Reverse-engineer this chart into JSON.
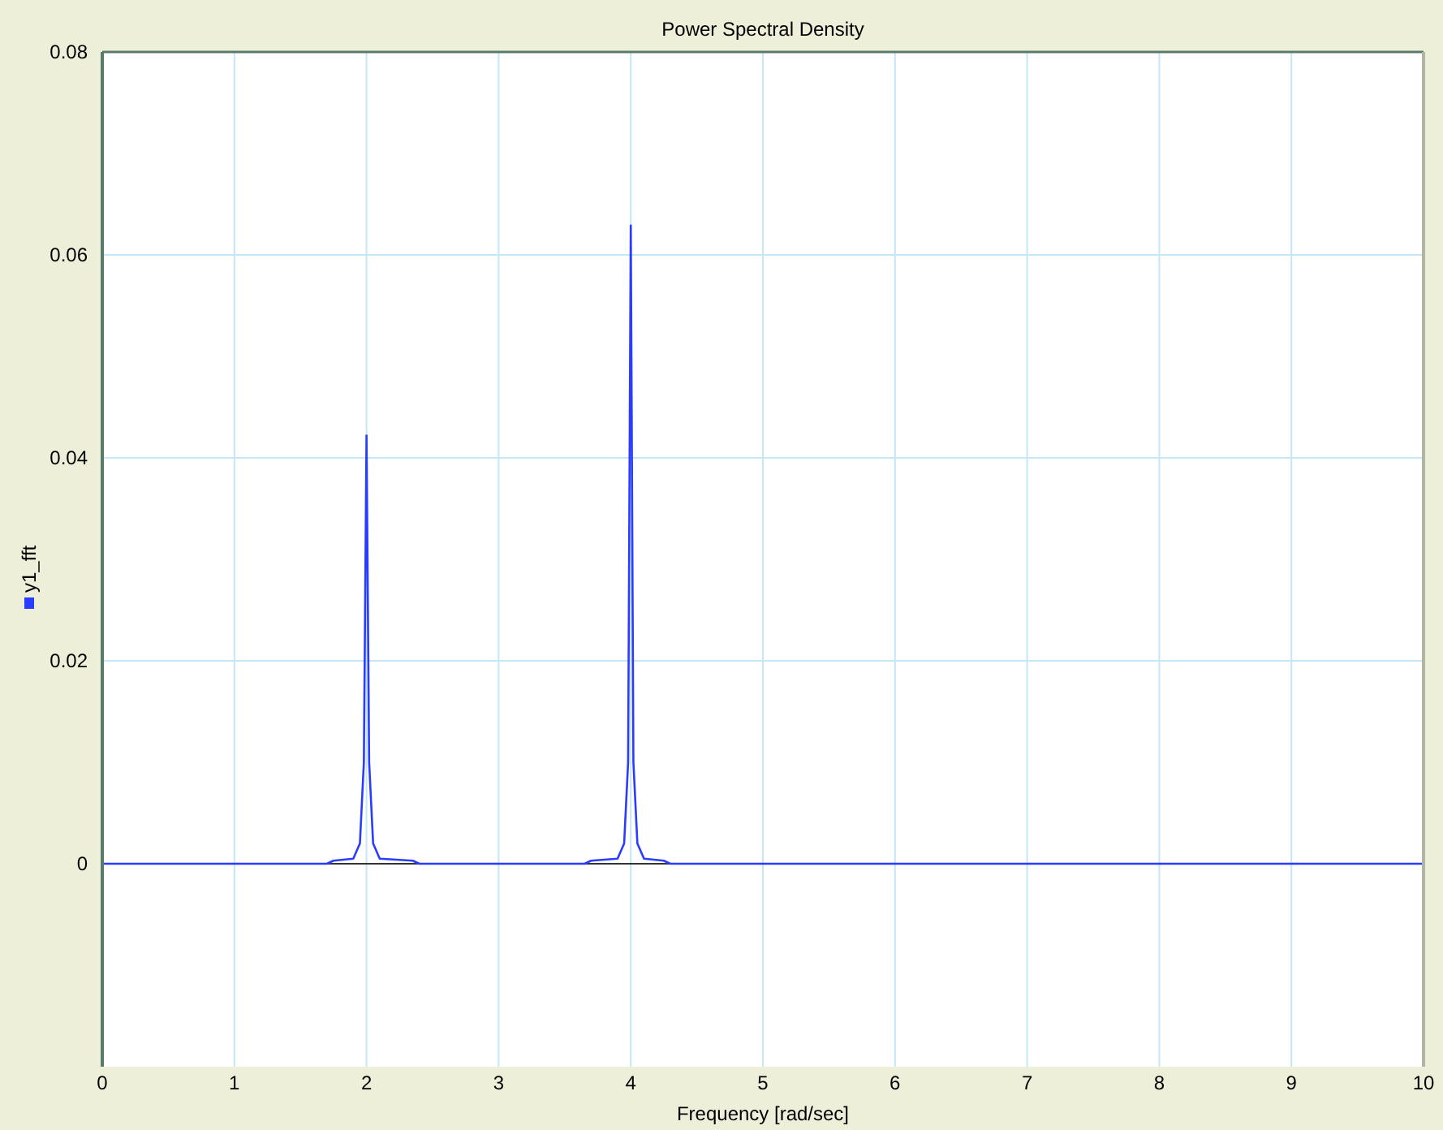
{
  "chart_data": {
    "type": "line",
    "title": "Power Spectral Density",
    "xlabel": "Frequency [rad/sec]",
    "xlim": [
      0,
      10
    ],
    "xticks": [
      0,
      1,
      2,
      3,
      4,
      5,
      6,
      7,
      8,
      9,
      10
    ],
    "ylim": [
      -0.02,
      0.08
    ],
    "yticks": [
      0,
      0.02,
      0.04,
      0.06,
      0.08
    ],
    "grid": true,
    "legend": "left",
    "series": [
      {
        "name": "y1_fft",
        "color": "#2a3cff",
        "x": [
          0,
          1.7,
          1.75,
          1.9,
          1.95,
          1.98,
          2.0,
          2.02,
          2.05,
          2.1,
          2.35,
          2.4,
          3.65,
          3.7,
          3.9,
          3.95,
          3.98,
          4.0,
          4.02,
          4.05,
          4.1,
          4.25,
          4.3,
          10
        ],
        "values": [
          0,
          0,
          0.0003,
          0.0005,
          0.002,
          0.01,
          0.0422,
          0.01,
          0.002,
          0.0005,
          0.0003,
          0,
          0,
          0.0003,
          0.0005,
          0.002,
          0.01,
          0.0629,
          0.01,
          0.002,
          0.0005,
          0.0003,
          0,
          0
        ]
      }
    ]
  }
}
